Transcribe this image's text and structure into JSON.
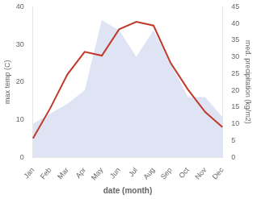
{
  "chart_data": {
    "type": "line",
    "categories": [
      "Jan",
      "Feb",
      "Mar",
      "Apr",
      "May",
      "Jun",
      "Jul",
      "Aug",
      "Sep",
      "Oct",
      "Nov",
      "Dec"
    ],
    "series": [
      {
        "type": "area",
        "color": "#b8c4e8",
        "axis": "y2",
        "values": [
          10,
          13,
          16,
          20,
          41,
          38,
          30,
          38,
          28,
          18,
          18,
          12
        ]
      },
      {
        "type": "line",
        "color": "#c0392b",
        "values": [
          5,
          13,
          22,
          28,
          27,
          34,
          36,
          35,
          25,
          18,
          12,
          8
        ]
      }
    ],
    "xlabel": "date (month)",
    "ylabel": "max temp (C)",
    "y2label": "med. precipitation (kg/m2)",
    "ylim": [
      0,
      40
    ],
    "yticks": [
      0,
      10,
      20,
      30,
      40
    ],
    "y2lim": [
      0,
      45
    ],
    "y2ticks": [
      0,
      5,
      10,
      15,
      20,
      25,
      30,
      35,
      40,
      45
    ],
    "grid": false,
    "tick_labels": true
  }
}
